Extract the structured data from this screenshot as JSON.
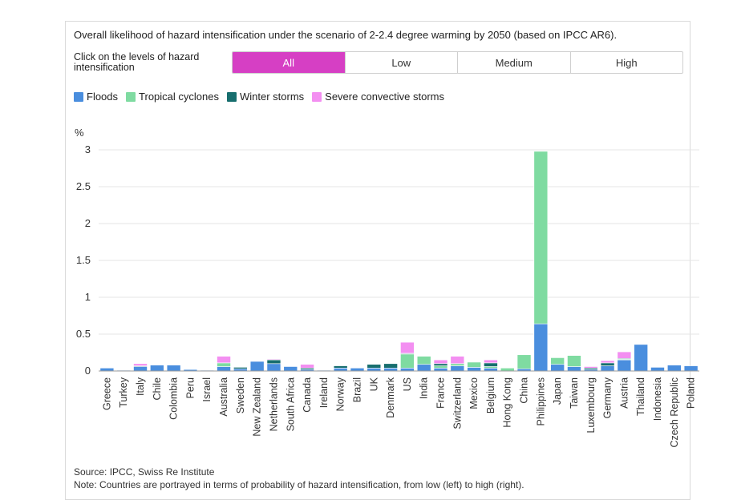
{
  "title": "Overall likelihood of hazard intensification under the scenario of 2-2.4 degree warming by 2050 (based on IPCC AR6).",
  "filter": {
    "label": "Click on the levels of hazard intensification",
    "options": [
      "All",
      "Low",
      "Medium",
      "High"
    ],
    "selected": "All",
    "active_color": "#d63fc4"
  },
  "legend": [
    {
      "label": "Floods",
      "color": "#4a8ede"
    },
    {
      "label": "Tropical cyclones",
      "color": "#7fdba1"
    },
    {
      "label": "Winter storms",
      "color": "#176e6e"
    },
    {
      "label": "Severe convective storms",
      "color": "#f38ff1"
    }
  ],
  "chart_data": {
    "type": "bar",
    "stacked": true,
    "ylabel": "%",
    "ylim": [
      0,
      3
    ],
    "yticks": [
      "0",
      "0.5",
      "1",
      "1.5",
      "2",
      "2.5",
      "3"
    ],
    "grid": true,
    "categories": [
      "Greece",
      "Turkey",
      "Italy",
      "Chile",
      "Colombia",
      "Peru",
      "Israel",
      "Australia",
      "Sweden",
      "New Zealand",
      "Netherlands",
      "South Africa",
      "Canada",
      "Ireland",
      "Norway",
      "Brazil",
      "UK",
      "Denmark",
      "US",
      "India",
      "France",
      "Switzerland",
      "Mexico",
      "Belgium",
      "Hong Kong",
      "China",
      "Philippines",
      "Japan",
      "Taiwan",
      "Luxembourg",
      "Germany",
      "Austria",
      "Thailand",
      "Indonesia",
      "Czech Republic",
      "Poland"
    ],
    "series": [
      {
        "name": "Floods",
        "color": "#4a8ede",
        "values": [
          0.04,
          0.01,
          0.06,
          0.08,
          0.08,
          0.02,
          0.01,
          0.06,
          0.03,
          0.13,
          0.1,
          0.06,
          0.02,
          0.01,
          0.04,
          0.04,
          0.04,
          0.04,
          0.04,
          0.09,
          0.04,
          0.07,
          0.05,
          0.04,
          0.0,
          0.03,
          0.64,
          0.09,
          0.06,
          0.02,
          0.07,
          0.15,
          0.36,
          0.05,
          0.08,
          0.07
        ]
      },
      {
        "name": "Tropical cyclones",
        "color": "#7fdba1",
        "values": [
          0,
          0,
          0,
          0,
          0,
          0,
          0,
          0.05,
          0,
          0,
          0,
          0,
          0,
          0,
          0,
          0,
          0,
          0,
          0.19,
          0.11,
          0.03,
          0.03,
          0.07,
          0.02,
          0.04,
          0.19,
          2.34,
          0.09,
          0.15,
          0,
          0,
          0.01,
          0,
          0,
          0,
          0
        ]
      },
      {
        "name": "Winter storms",
        "color": "#176e6e",
        "values": [
          0,
          0,
          0.01,
          0,
          0,
          0,
          0,
          0,
          0.02,
          0,
          0.05,
          0,
          0.02,
          0,
          0.03,
          0,
          0.05,
          0.06,
          0.01,
          0,
          0.03,
          0,
          0,
          0.05,
          0,
          0,
          0,
          0,
          0,
          0.02,
          0.04,
          0.01,
          0,
          0,
          0,
          0
        ]
      },
      {
        "name": "Severe convective storms",
        "color": "#f38ff1",
        "values": [
          0,
          0,
          0.03,
          0,
          0,
          0,
          0,
          0.09,
          0,
          0,
          0.01,
          0,
          0.05,
          0,
          0,
          0,
          0,
          0,
          0.15,
          0,
          0.05,
          0.1,
          0,
          0.04,
          0,
          0,
          0,
          0,
          0,
          0.02,
          0.03,
          0.09,
          0,
          0,
          0,
          0
        ]
      }
    ]
  },
  "source": "Source: IPCC, Swiss Re Institute",
  "note": "Note: Countries are portrayed in terms of probability of hazard intensification, from low (left) to high (right)."
}
